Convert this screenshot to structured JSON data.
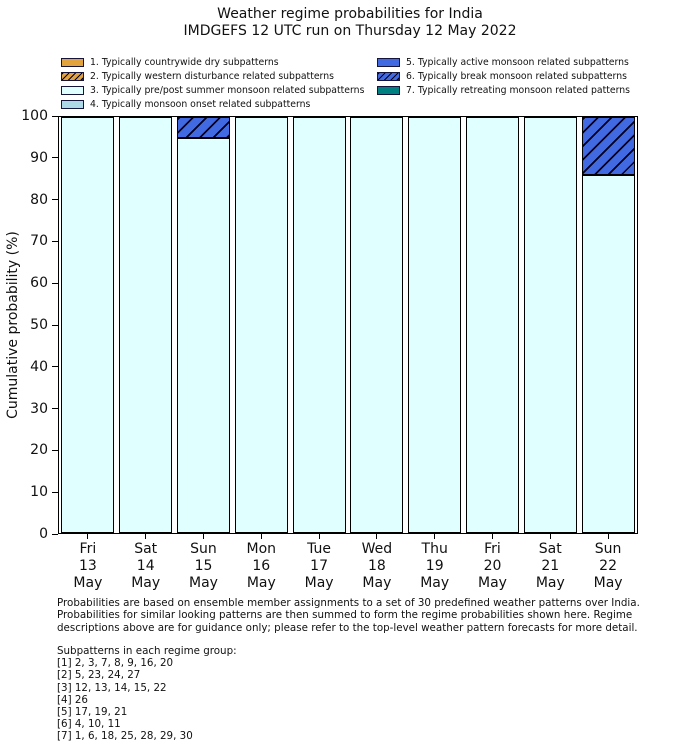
{
  "title": {
    "line1": "Weather regime probabilities for India",
    "line2": "IMDGEFS 12 UTC run on Thursday 12 May 2022"
  },
  "legend": {
    "items": [
      {
        "id": 1,
        "label": "1. Typically countrywide dry subpatterns",
        "color": "#E2A33D",
        "hatch": false
      },
      {
        "id": 2,
        "label": "2. Typically western disturbance related subpatterns",
        "color": "#E2A33D",
        "hatch": true
      },
      {
        "id": 3,
        "label": "3. Typically pre/post summer monsoon related subpatterns",
        "color": "#E0FFFF",
        "hatch": false
      },
      {
        "id": 4,
        "label": "4. Typically monsoon onset related subpatterns",
        "color": "#ADD8E6",
        "hatch": false
      },
      {
        "id": 5,
        "label": "5. Typically active monsoon related subpatterns",
        "color": "#4169E1",
        "hatch": false
      },
      {
        "id": 6,
        "label": "6. Typically break monsoon related subpatterns",
        "color": "#4169E1",
        "hatch": true
      },
      {
        "id": 7,
        "label": "7. Typically retreating monsoon related patterns",
        "color": "#008080",
        "hatch": false
      }
    ]
  },
  "chart_data": {
    "type": "bar",
    "stacked": true,
    "title": "Weather regime probabilities for India - IMDGEFS 12 UTC run on Thursday 12 May 2022",
    "ylabel": "Cumulative probability (%)",
    "xlabel": "",
    "ylim": [
      0,
      100
    ],
    "yticks": [
      0,
      10,
      20,
      30,
      40,
      50,
      60,
      70,
      80,
      90,
      100
    ],
    "grid": false,
    "legend_position": "top",
    "categories": [
      {
        "day": "Fri",
        "date": "13",
        "month": "May"
      },
      {
        "day": "Sat",
        "date": "14",
        "month": "May"
      },
      {
        "day": "Sun",
        "date": "15",
        "month": "May"
      },
      {
        "day": "Mon",
        "date": "16",
        "month": "May"
      },
      {
        "day": "Tue",
        "date": "17",
        "month": "May"
      },
      {
        "day": "Wed",
        "date": "18",
        "month": "May"
      },
      {
        "day": "Thu",
        "date": "19",
        "month": "May"
      },
      {
        "day": "Fri",
        "date": "20",
        "month": "May"
      },
      {
        "day": "Sat",
        "date": "21",
        "month": "May"
      },
      {
        "day": "Sun",
        "date": "22",
        "month": "May"
      }
    ],
    "series": [
      {
        "legend_id": 3,
        "name": "3. Typically pre/post summer monsoon related subpatterns",
        "values": [
          100,
          100,
          95,
          100,
          100,
          100,
          100,
          100,
          100,
          86
        ]
      },
      {
        "legend_id": 6,
        "name": "6. Typically break monsoon related subpatterns",
        "values": [
          0,
          0,
          5,
          0,
          0,
          0,
          0,
          0,
          0,
          14
        ]
      }
    ]
  },
  "footnote": "Probabilities are based on ensemble member assignments to a set of 30 predefined weather patterns over India.\nProbabilities for similar looking patterns are then summed to form the regime probabilities shown here. Regime\ndescriptions above are for guidance only; please refer to the top-level weather pattern forecasts for more detail.",
  "subpatterns": {
    "heading": "Subpatterns in each regime group:",
    "groups": [
      "[1] 2, 3, 7, 8, 9, 16, 20",
      "[2] 5, 23, 24, 27",
      "[3] 12, 13, 14, 15, 22",
      "[4] 26",
      "[5] 17, 19, 21",
      "[6] 4, 10, 11",
      "[7] 1, 6, 18, 25, 28, 29, 30"
    ]
  }
}
